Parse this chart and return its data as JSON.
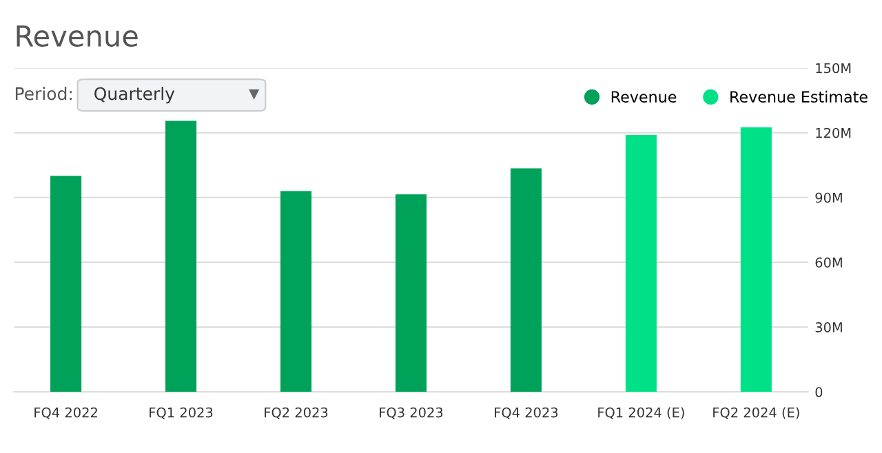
{
  "chart_data": {
    "type": "bar",
    "title": "Revenue",
    "annotations": [
      "Period:",
      "Quarterly"
    ],
    "categories": [
      "FQ4 2022",
      "FQ1 2023",
      "FQ2 2023",
      "FQ3 2023",
      "FQ4 2023",
      "FQ1 2024 (E)",
      "FQ2 2024 (E)"
    ],
    "series": [
      {
        "name": "Revenue",
        "color": "#00a25a",
        "values": [
          100,
          125.5,
          93,
          91.5,
          103.5,
          null,
          null
        ]
      },
      {
        "name": "Revenue Estimate",
        "color": "#00e087",
        "values": [
          null,
          null,
          null,
          null,
          null,
          119,
          122.5
        ]
      }
    ],
    "ylim": [
      0,
      150
    ],
    "yticks": [
      {
        "value": 0,
        "label": "0"
      },
      {
        "value": 30,
        "label": "30M"
      },
      {
        "value": 60,
        "label": "60M"
      },
      {
        "value": 90,
        "label": "90M"
      },
      {
        "value": 120,
        "label": "120M"
      },
      {
        "value": 150,
        "label": "150M"
      }
    ],
    "grid": "y",
    "legend": "top right"
  }
}
